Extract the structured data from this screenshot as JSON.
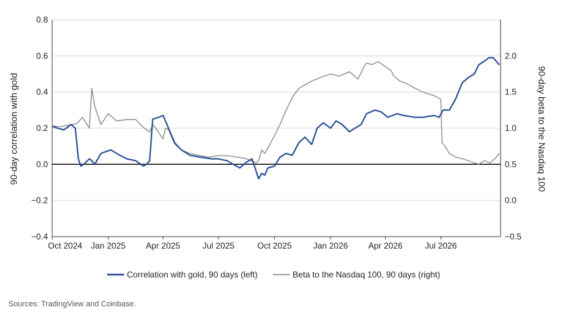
{
  "source": "Sources: TradingView and Coinbase.",
  "colors": {
    "left_series": "#2b4f96",
    "right_series": "#8a8a8a",
    "grid": "#d9d9d9",
    "zero_line": "#000000",
    "frame": "#444444"
  },
  "chart_data": {
    "type": "line",
    "title": "",
    "xlabel": "",
    "ylabel": "90-day correlation with gold",
    "ylabel_right": "90-day beta to the Nasdaq 100",
    "xlim": [
      "2024-10-01",
      "2026-10-07"
    ],
    "ylim": [
      -0.4,
      0.8
    ],
    "ylim_right": [
      -0.5,
      2.5
    ],
    "x_ticks": [
      "Oct 2024",
      "Jan 2025",
      "Apr 2025",
      "Jul 2025",
      "Oct 2025",
      "Jan 2026",
      "Apr 2026",
      "Jul 2026"
    ],
    "x_tick_dates": [
      "2024-10-01",
      "2025-01-01",
      "2025-04-01",
      "2025-07-01",
      "2025-10-01",
      "2026-01-01",
      "2026-04-01",
      "2026-07-01"
    ],
    "y_ticks_left": [
      "0.8",
      "0.6",
      "0.4",
      "0.2",
      "0.0",
      "−0.2",
      "−0.4"
    ],
    "y_tick_values_left": [
      0.8,
      0.6,
      0.4,
      0.2,
      0.0,
      -0.2,
      -0.4
    ],
    "y_ticks_right": [
      "2.0",
      "1.5",
      "1.0",
      "0.5",
      "0.0",
      "−0.5"
    ],
    "y_tick_values_right": [
      2.0,
      1.5,
      1.0,
      0.5,
      0.0,
      -0.5
    ],
    "grid": true,
    "legend_position": "bottom",
    "series": [
      {
        "name": "Correlation with gold, 90 days (left)",
        "axis": "left",
        "color": "#2b4f96",
        "x": [
          "2024-10-01",
          "2024-10-10",
          "2024-10-20",
          "2024-11-01",
          "2024-11-08",
          "2024-11-13",
          "2024-11-17",
          "2024-11-22",
          "2024-12-01",
          "2024-12-05",
          "2024-12-10",
          "2024-12-20",
          "2025-01-05",
          "2025-01-20",
          "2025-02-01",
          "2025-02-15",
          "2025-02-28",
          "2025-03-05",
          "2025-03-10",
          "2025-03-15",
          "2025-03-25",
          "2025-04-01",
          "2025-04-05",
          "2025-04-10",
          "2025-04-20",
          "2025-05-01",
          "2025-05-15",
          "2025-06-01",
          "2025-06-20",
          "2025-07-01",
          "2025-07-15",
          "2025-07-25",
          "2025-08-05",
          "2025-08-15",
          "2025-08-25",
          "2025-09-05",
          "2025-09-10",
          "2025-09-15",
          "2025-09-20",
          "2025-10-01",
          "2025-10-10",
          "2025-10-20",
          "2025-10-30",
          "2025-11-10",
          "2025-11-20",
          "2025-12-01",
          "2025-12-10",
          "2025-12-20",
          "2026-01-01",
          "2026-01-10",
          "2026-01-20",
          "2026-02-01",
          "2026-02-10",
          "2026-02-20",
          "2026-03-01",
          "2026-03-15",
          "2026-03-25",
          "2026-04-05",
          "2026-04-20",
          "2026-05-01",
          "2026-05-20",
          "2026-06-01",
          "2026-06-20",
          "2026-06-28",
          "2026-07-05",
          "2026-07-15",
          "2026-07-25",
          "2026-08-05",
          "2026-08-15",
          "2026-08-25",
          "2026-09-01",
          "2026-09-10",
          "2026-09-18",
          "2026-09-25",
          "2026-10-05"
        ],
        "values": [
          0.21,
          0.2,
          0.19,
          0.22,
          0.2,
          0.03,
          -0.01,
          0.0,
          0.03,
          0.02,
          0.0,
          0.06,
          0.08,
          0.05,
          0.03,
          0.02,
          -0.01,
          0.0,
          0.02,
          0.25,
          0.26,
          0.27,
          0.24,
          0.2,
          0.12,
          0.08,
          0.05,
          0.04,
          0.03,
          0.03,
          0.02,
          0.0,
          -0.02,
          0.01,
          0.03,
          -0.08,
          -0.05,
          -0.06,
          -0.02,
          -0.01,
          0.04,
          0.06,
          0.05,
          0.12,
          0.15,
          0.11,
          0.2,
          0.23,
          0.2,
          0.24,
          0.22,
          0.18,
          0.2,
          0.22,
          0.28,
          0.3,
          0.29,
          0.26,
          0.28,
          0.27,
          0.26,
          0.26,
          0.27,
          0.26,
          0.3,
          0.3,
          0.36,
          0.45,
          0.48,
          0.5,
          0.55,
          0.57,
          0.59,
          0.59,
          0.55
        ]
      },
      {
        "name": "Beta to the Nasdaq 100, 90 days (right)",
        "axis": "right",
        "color": "#8a8a8a",
        "x": [
          "2024-10-01",
          "2024-10-15",
          "2024-11-01",
          "2024-11-10",
          "2024-11-20",
          "2024-12-01",
          "2024-12-05",
          "2024-12-10",
          "2024-12-20",
          "2025-01-01",
          "2025-01-15",
          "2025-02-01",
          "2025-02-15",
          "2025-03-01",
          "2025-03-10",
          "2025-03-15",
          "2025-03-20",
          "2025-04-01",
          "2025-04-05",
          "2025-04-10",
          "2025-04-20",
          "2025-05-01",
          "2025-05-15",
          "2025-06-01",
          "2025-06-15",
          "2025-07-01",
          "2025-07-15",
          "2025-08-01",
          "2025-08-15",
          "2025-09-01",
          "2025-09-05",
          "2025-09-10",
          "2025-09-15",
          "2025-09-25",
          "2025-10-01",
          "2025-10-10",
          "2025-10-20",
          "2025-11-01",
          "2025-11-10",
          "2025-11-20",
          "2025-12-01",
          "2025-12-15",
          "2026-01-01",
          "2026-01-15",
          "2026-02-01",
          "2026-02-15",
          "2026-02-25",
          "2026-03-01",
          "2026-03-10",
          "2026-03-20",
          "2026-04-01",
          "2026-04-10",
          "2026-04-15",
          "2026-04-25",
          "2026-05-05",
          "2026-05-20",
          "2026-06-01",
          "2026-06-20",
          "2026-07-01",
          "2026-07-03",
          "2026-07-08",
          "2026-07-15",
          "2026-07-25",
          "2026-08-05",
          "2026-08-15",
          "2026-08-25",
          "2026-09-01",
          "2026-09-10",
          "2026-09-20",
          "2026-09-28",
          "2026-10-05"
        ],
        "values": [
          1.03,
          1.02,
          1.05,
          1.06,
          1.15,
          1.0,
          1.55,
          1.3,
          1.05,
          1.2,
          1.1,
          1.12,
          1.12,
          1.0,
          0.95,
          1.05,
          1.0,
          0.85,
          1.0,
          0.98,
          0.78,
          0.7,
          0.65,
          0.62,
          0.6,
          0.62,
          0.62,
          0.6,
          0.58,
          0.52,
          0.55,
          0.7,
          0.65,
          0.8,
          0.9,
          1.05,
          1.25,
          1.45,
          1.55,
          1.6,
          1.65,
          1.7,
          1.75,
          1.72,
          1.78,
          1.68,
          1.85,
          1.9,
          1.88,
          1.92,
          1.85,
          1.8,
          1.72,
          1.65,
          1.62,
          1.55,
          1.5,
          1.45,
          1.4,
          0.8,
          0.75,
          0.65,
          0.6,
          0.58,
          0.55,
          0.52,
          0.5,
          0.55,
          0.52,
          0.58,
          0.65
        ]
      }
    ]
  }
}
